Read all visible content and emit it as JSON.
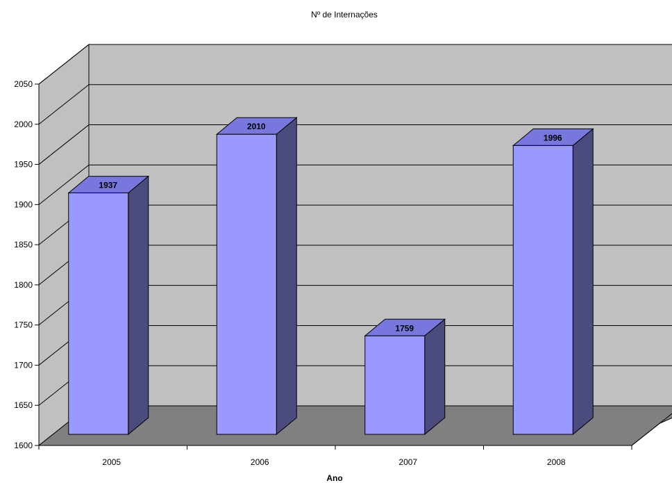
{
  "chart_data": {
    "type": "bar",
    "title": "Nº de Internações",
    "xlabel": "Ano",
    "ylabel": "",
    "categories": [
      "2005",
      "2006",
      "2007",
      "2008"
    ],
    "values": [
      1937,
      2010,
      1759,
      1996
    ],
    "data_labels": [
      "1937",
      "2010",
      "1759",
      "1996"
    ],
    "ylim": [
      1600,
      2050
    ],
    "yticks": [
      1600,
      1650,
      1700,
      1750,
      1800,
      1850,
      1900,
      1950,
      2000,
      2050
    ],
    "grid": true,
    "three_d": true,
    "legend": "none"
  },
  "colors": {
    "bar_front": "#9999ff",
    "bar_top": "#7777dd",
    "bar_side": "#4b4b7e",
    "back_wall": "#c0c0c0",
    "side_wall": "#c0c0c0",
    "floor": "#808080",
    "grid": "#000000"
  }
}
